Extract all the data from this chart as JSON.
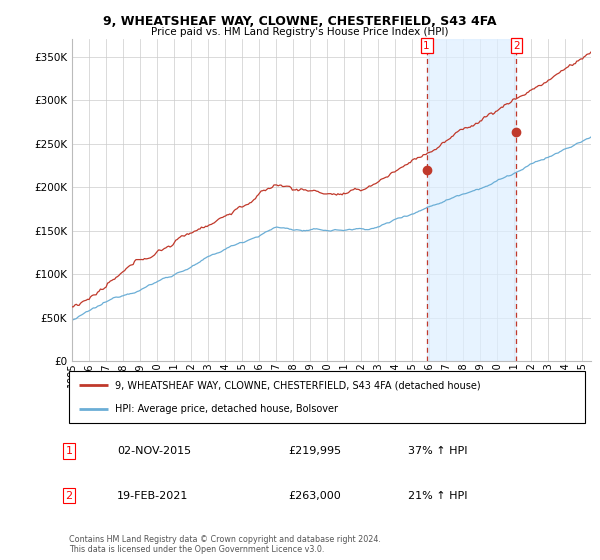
{
  "title": "9, WHEATSHEAF WAY, CLOWNE, CHESTERFIELD, S43 4FA",
  "subtitle": "Price paid vs. HM Land Registry's House Price Index (HPI)",
  "ylabel_ticks": [
    "£0",
    "£50K",
    "£100K",
    "£150K",
    "£200K",
    "£250K",
    "£300K",
    "£350K"
  ],
  "ytick_values": [
    0,
    50000,
    100000,
    150000,
    200000,
    250000,
    300000,
    350000
  ],
  "ylim": [
    0,
    370000
  ],
  "xlim_start": 1995.0,
  "xlim_end": 2025.5,
  "sale1_x": 2015.84,
  "sale1_y": 219995,
  "sale1_label": "1",
  "sale1_date": "02-NOV-2015",
  "sale1_price": "£219,995",
  "sale1_hpi": "37% ↑ HPI",
  "sale2_x": 2021.12,
  "sale2_y": 263000,
  "sale2_label": "2",
  "sale2_date": "19-FEB-2021",
  "sale2_price": "£263,000",
  "sale2_hpi": "21% ↑ HPI",
  "hpi_line_color": "#6baed6",
  "price_line_color": "#c0392b",
  "shade_color": "#ddeeff",
  "dashed_line_color": "#c0392b",
  "background_color": "#ffffff",
  "grid_color": "#cccccc",
  "legend_label_property": "9, WHEATSHEAF WAY, CLOWNE, CHESTERFIELD, S43 4FA (detached house)",
  "legend_label_hpi": "HPI: Average price, detached house, Bolsover",
  "copyright_text": "Contains HM Land Registry data © Crown copyright and database right 2024.\nThis data is licensed under the Open Government Licence v3.0.",
  "xtick_years": [
    1995,
    1996,
    1997,
    1998,
    1999,
    2000,
    2001,
    2002,
    2003,
    2004,
    2005,
    2006,
    2007,
    2008,
    2009,
    2010,
    2011,
    2012,
    2013,
    2014,
    2015,
    2016,
    2017,
    2018,
    2019,
    2020,
    2021,
    2022,
    2023,
    2024,
    2025
  ]
}
